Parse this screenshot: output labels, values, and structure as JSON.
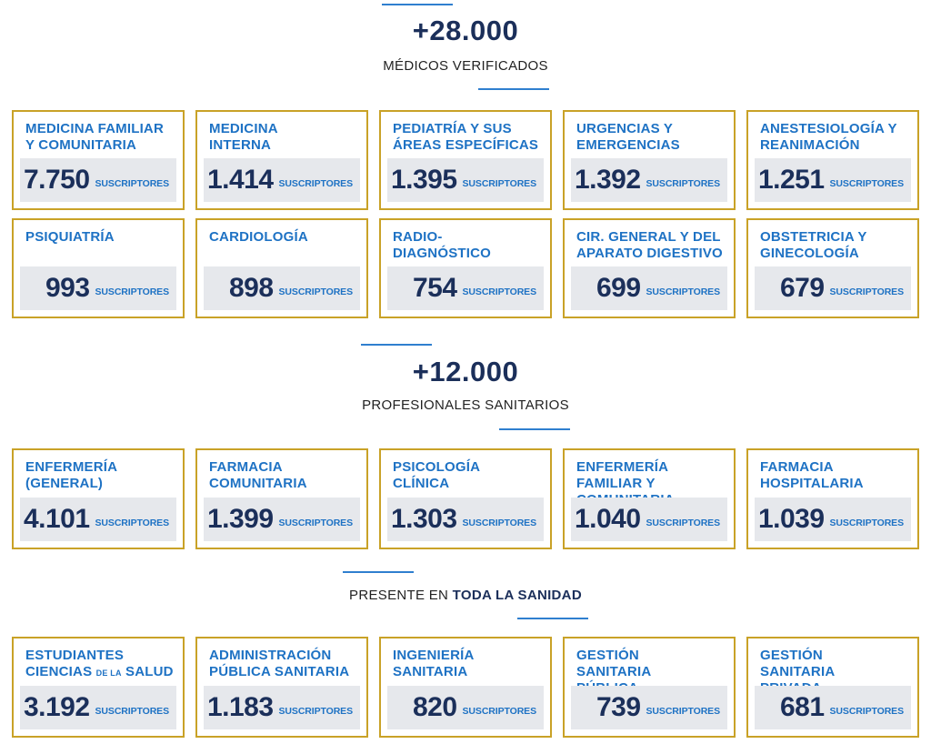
{
  "sections": [
    {
      "total": "+28.000",
      "label": "MÉDICOS VERIFICADOS",
      "cards": [
        {
          "title": "MEDICINA FAMILIAR Y COMUNITARIA",
          "value": "7.750",
          "unit": "SUSCRIPTORES"
        },
        {
          "title": "MEDICINA INTERNA",
          "value": "1.414",
          "unit": "SUSCRIPTORES"
        },
        {
          "title": "PEDIATRÍA Y SUS ÁREAS ESPECÍFICAS",
          "value": "1.395",
          "unit": "SUSCRIPTORES"
        },
        {
          "title": "URGENCIAS Y EMERGENCIAS",
          "value": "1.392",
          "unit": "SUSCRIPTORES"
        },
        {
          "title": "ANESTESIOLOGÍA Y REANIMACIÓN",
          "value": "1.251",
          "unit": "SUSCRIPTORES"
        },
        {
          "title": "PSIQUIATRÍA",
          "value": "993",
          "unit": "SUSCRIPTORES"
        },
        {
          "title": "CARDIOLOGÍA",
          "value": "898",
          "unit": "SUSCRIPTORES"
        },
        {
          "title": "RADIO-DIAGNÓSTICO",
          "value": "754",
          "unit": "SUSCRIPTORES"
        },
        {
          "title": "CIR. GENERAL Y DEL APARATO DIGESTIVO",
          "value": "699",
          "unit": "SUSCRIPTORES"
        },
        {
          "title": "OBSTETRICIA Y GINECOLOGÍA",
          "value": "679",
          "unit": "SUSCRIPTORES"
        }
      ]
    },
    {
      "total": "+12.000",
      "label": "PROFESIONALES SANITARIOS",
      "cards": [
        {
          "title": "ENFERMERÍA (GENERAL)",
          "value": "4.101",
          "unit": "SUSCRIPTORES"
        },
        {
          "title": "FARMACIA COMUNITARIA",
          "value": "1.399",
          "unit": "SUSCRIPTORES"
        },
        {
          "title": "PSICOLOGÍA CLÍNICA",
          "value": "1.303",
          "unit": "SUSCRIPTORES"
        },
        {
          "title": "ENFERMERÍA FAMILIAR Y COMUNITARIA",
          "value": "1.040",
          "unit": "SUSCRIPTORES"
        },
        {
          "title": "FARMACIA HOSPITALARIA",
          "value": "1.039",
          "unit": "SUSCRIPTORES"
        }
      ]
    },
    {
      "label_prefix": "PRESENTE EN",
      "label_bold": "TODA LA SANIDAD",
      "cards": [
        {
          "title_a": "ESTUDIANTES CIENCIAS",
          "title_small": "DE LA",
          "title_b": "SALUD",
          "value": "3.192",
          "unit": "SUSCRIPTORES"
        },
        {
          "title": "ADMINISTRACIÓN PÚBLICA SANITARIA",
          "value": "1.183",
          "unit": "SUSCRIPTORES"
        },
        {
          "title": "INGENIERÍA SANITARIA",
          "value": "820",
          "unit": "SUSCRIPTORES"
        },
        {
          "title": "GESTIÓN SANITARIA PÚBLICA",
          "value": "739",
          "unit": "SUSCRIPTORES"
        },
        {
          "title": "GESTIÓN SANITARIA PRIVADA",
          "value": "681",
          "unit": "SUSCRIPTORES"
        }
      ]
    }
  ]
}
